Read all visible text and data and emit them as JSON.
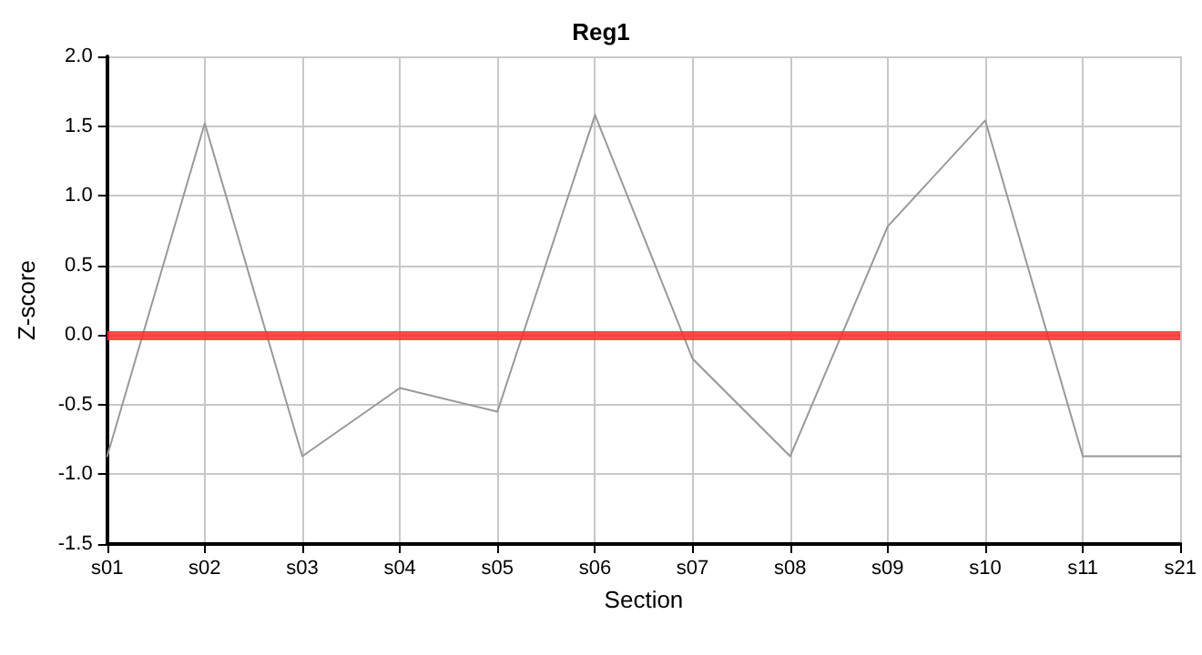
{
  "chart_data": {
    "type": "line",
    "title": "Reg1",
    "xlabel": "Section",
    "ylabel": "Z-score",
    "categories": [
      "s01",
      "s02",
      "s03",
      "s04",
      "s05",
      "s06",
      "s07",
      "s08",
      "s09",
      "s10",
      "s11",
      "s21"
    ],
    "series": [
      {
        "color": "#999999",
        "values": [
          -0.87,
          1.52,
          -0.87,
          -0.38,
          -0.55,
          1.58,
          -0.17,
          -0.87,
          0.78,
          1.54,
          -0.87,
          -0.87
        ]
      }
    ],
    "ylim": [
      -1.5,
      2.0
    ],
    "yticks": [
      -1.5,
      {
        "value": -1,
        "label": "-1.0"
      },
      -0.5,
      {
        "value": 0,
        "label": "0.0"
      },
      0.5,
      {
        "value": 1,
        "label": "1.0"
      },
      1.5,
      {
        "value": 2,
        "label": "2.0"
      }
    ],
    "ref_lines": [
      {
        "axis": "y",
        "value": 0,
        "color": "#ff2a2a"
      }
    ],
    "grid": true,
    "marker": "none",
    "line_style": "solid"
  }
}
